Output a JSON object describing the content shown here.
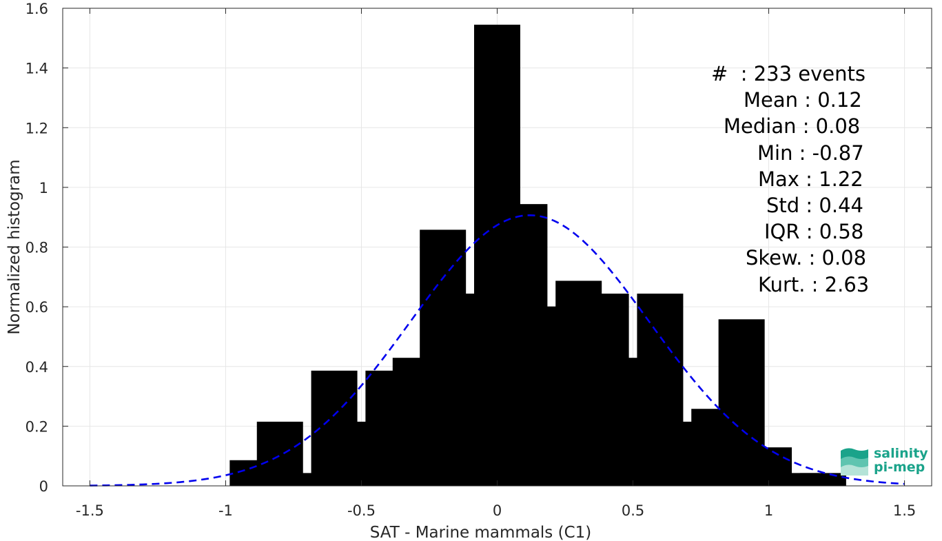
{
  "chart_data": {
    "type": "bar",
    "xlabel": "SAT - Marine mammals (C1)",
    "ylabel": "Normalized histogram",
    "xlim": [
      -1.6,
      1.6
    ],
    "ylim": [
      0,
      1.6
    ],
    "x_ticks": [
      "-1.5",
      "-1",
      "-0.5",
      "0",
      "0.5",
      "1",
      "1.5"
    ],
    "x_tick_values": [
      -1.5,
      -1,
      -0.5,
      0,
      0.5,
      1,
      1.5
    ],
    "y_ticks": [
      "0",
      "0.2",
      "0.4",
      "0.6",
      "0.8",
      "1",
      "1.2",
      "1.4",
      "1.6"
    ],
    "y_tick_values": [
      0,
      0.2,
      0.4,
      0.6,
      0.8,
      1,
      1.2,
      1.4,
      1.6
    ],
    "grid": true,
    "bin_centers": [
      -0.9,
      -0.8,
      -0.7,
      -0.6,
      -0.5,
      -0.4,
      -0.3,
      -0.2,
      -0.1,
      0.0,
      0.1,
      0.2,
      0.3,
      0.4,
      0.5,
      0.6,
      0.7,
      0.8,
      0.9,
      1.0,
      1.1,
      1.2
    ],
    "values": [
      0.086,
      0.215,
      0.043,
      0.386,
      0.215,
      0.386,
      0.429,
      0.858,
      0.644,
      1.545,
      0.944,
      0.601,
      0.687,
      0.644,
      0.429,
      0.644,
      0.215,
      0.258,
      0.558,
      0.129,
      0.043,
      0.043
    ],
    "bar_color": "#000000",
    "fit_curve": {
      "type": "normal",
      "mean": 0.12,
      "std": 0.44,
      "color": "#0000ee",
      "style": "dashed",
      "x_range": [
        -1.5,
        1.5
      ]
    },
    "annotations": [
      "#  : 233 events",
      "Mean : 0.12",
      "Median : 0.08",
      "Min : -0.87",
      "Max : 1.22",
      "Std : 0.44",
      "IQR : 0.58",
      "Skew. : 0.08",
      "Kurt. : 2.63"
    ]
  },
  "logo": {
    "line1": "salinity",
    "line2": "pi-mep",
    "color": "#1aa38a"
  }
}
